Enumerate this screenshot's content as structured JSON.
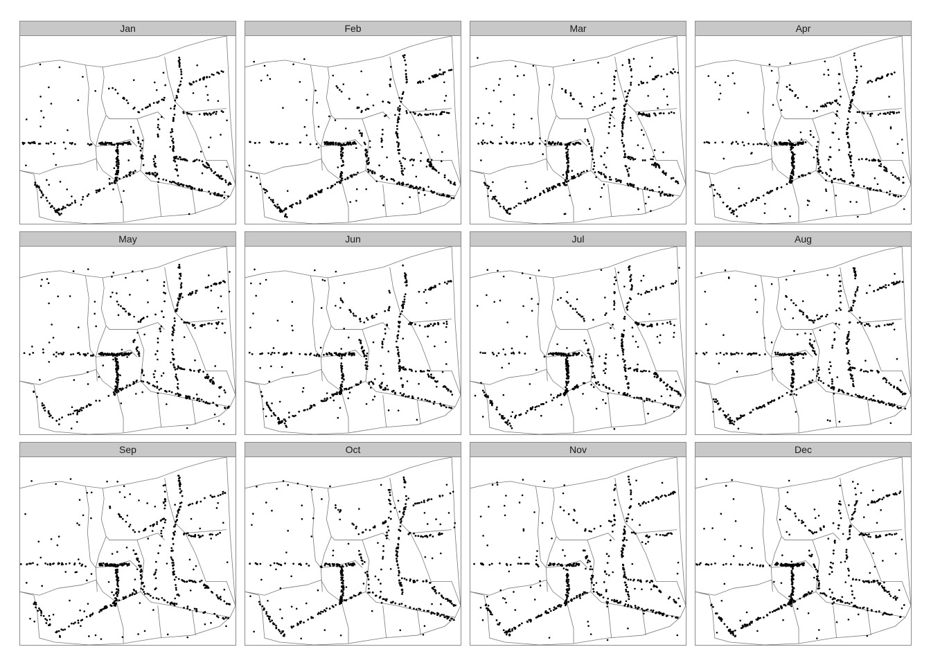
{
  "facets": [
    {
      "label": "Jan"
    },
    {
      "label": "Feb"
    },
    {
      "label": "Mar"
    },
    {
      "label": "Apr"
    },
    {
      "label": "May"
    },
    {
      "label": "Jun"
    },
    {
      "label": "Jul"
    },
    {
      "label": "Aug"
    },
    {
      "label": "Sep"
    },
    {
      "label": "Oct"
    },
    {
      "label": "Nov"
    },
    {
      "label": "Dec"
    }
  ],
  "colors": {
    "strip_fill": "#c8c8c8",
    "panel_border": "#8a8a8a",
    "boundary": "#777777",
    "point": "#000000"
  }
}
